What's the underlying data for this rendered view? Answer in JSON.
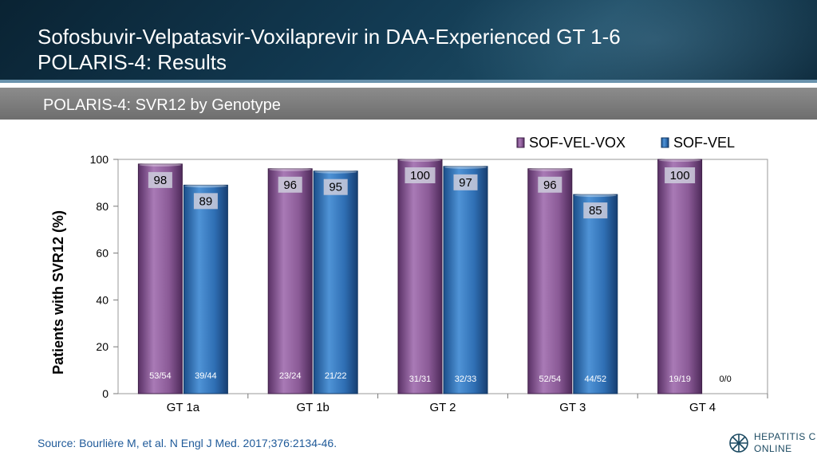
{
  "header": {
    "title_line1": "Sofosbuvir-Velpatasvir-Voxilaprevir in DAA-Experienced GT 1-6",
    "title_line2": "POLARIS-4: Results",
    "subtitle": "POLARIS-4: SVR12 by Genotype"
  },
  "footer": {
    "source": "Source: Bourlière M, et al. N Engl J Med. 2017;376:2134-46.",
    "logo_line1": "HEPATITIS C",
    "logo_line2": "ONLINE",
    "logo_icon": "hepatitis-c-online-logo-icon"
  },
  "colors": {
    "vox": "#8a5a96",
    "vel": "#2f6fb4",
    "header": "#123a52",
    "source": "#1f5a99"
  },
  "chart_data": {
    "type": "bar",
    "title": "",
    "xlabel": "",
    "ylabel": "Patients with SVR12 (%)",
    "ylim": [
      0,
      100
    ],
    "yticks": [
      0,
      20,
      40,
      60,
      80,
      100
    ],
    "legend_position": "top-right",
    "categories": [
      "GT 1a",
      "GT 1b",
      "GT 2",
      "GT 3",
      "GT 4"
    ],
    "series": [
      {
        "name": "SOF-VEL-VOX",
        "values": [
          98,
          96,
          100,
          96,
          100
        ],
        "labels": [
          "98",
          "96",
          "100",
          "96",
          "100"
        ],
        "counts": [
          "53/54",
          "23/24",
          "31/31",
          "52/54",
          "19/19"
        ]
      },
      {
        "name": "SOF-VEL",
        "values": [
          89,
          95,
          97,
          85,
          null
        ],
        "labels": [
          "89",
          "95",
          "97",
          "85",
          ""
        ],
        "counts": [
          "39/44",
          "21/22",
          "32/33",
          "44/52",
          "0/0"
        ]
      }
    ]
  }
}
